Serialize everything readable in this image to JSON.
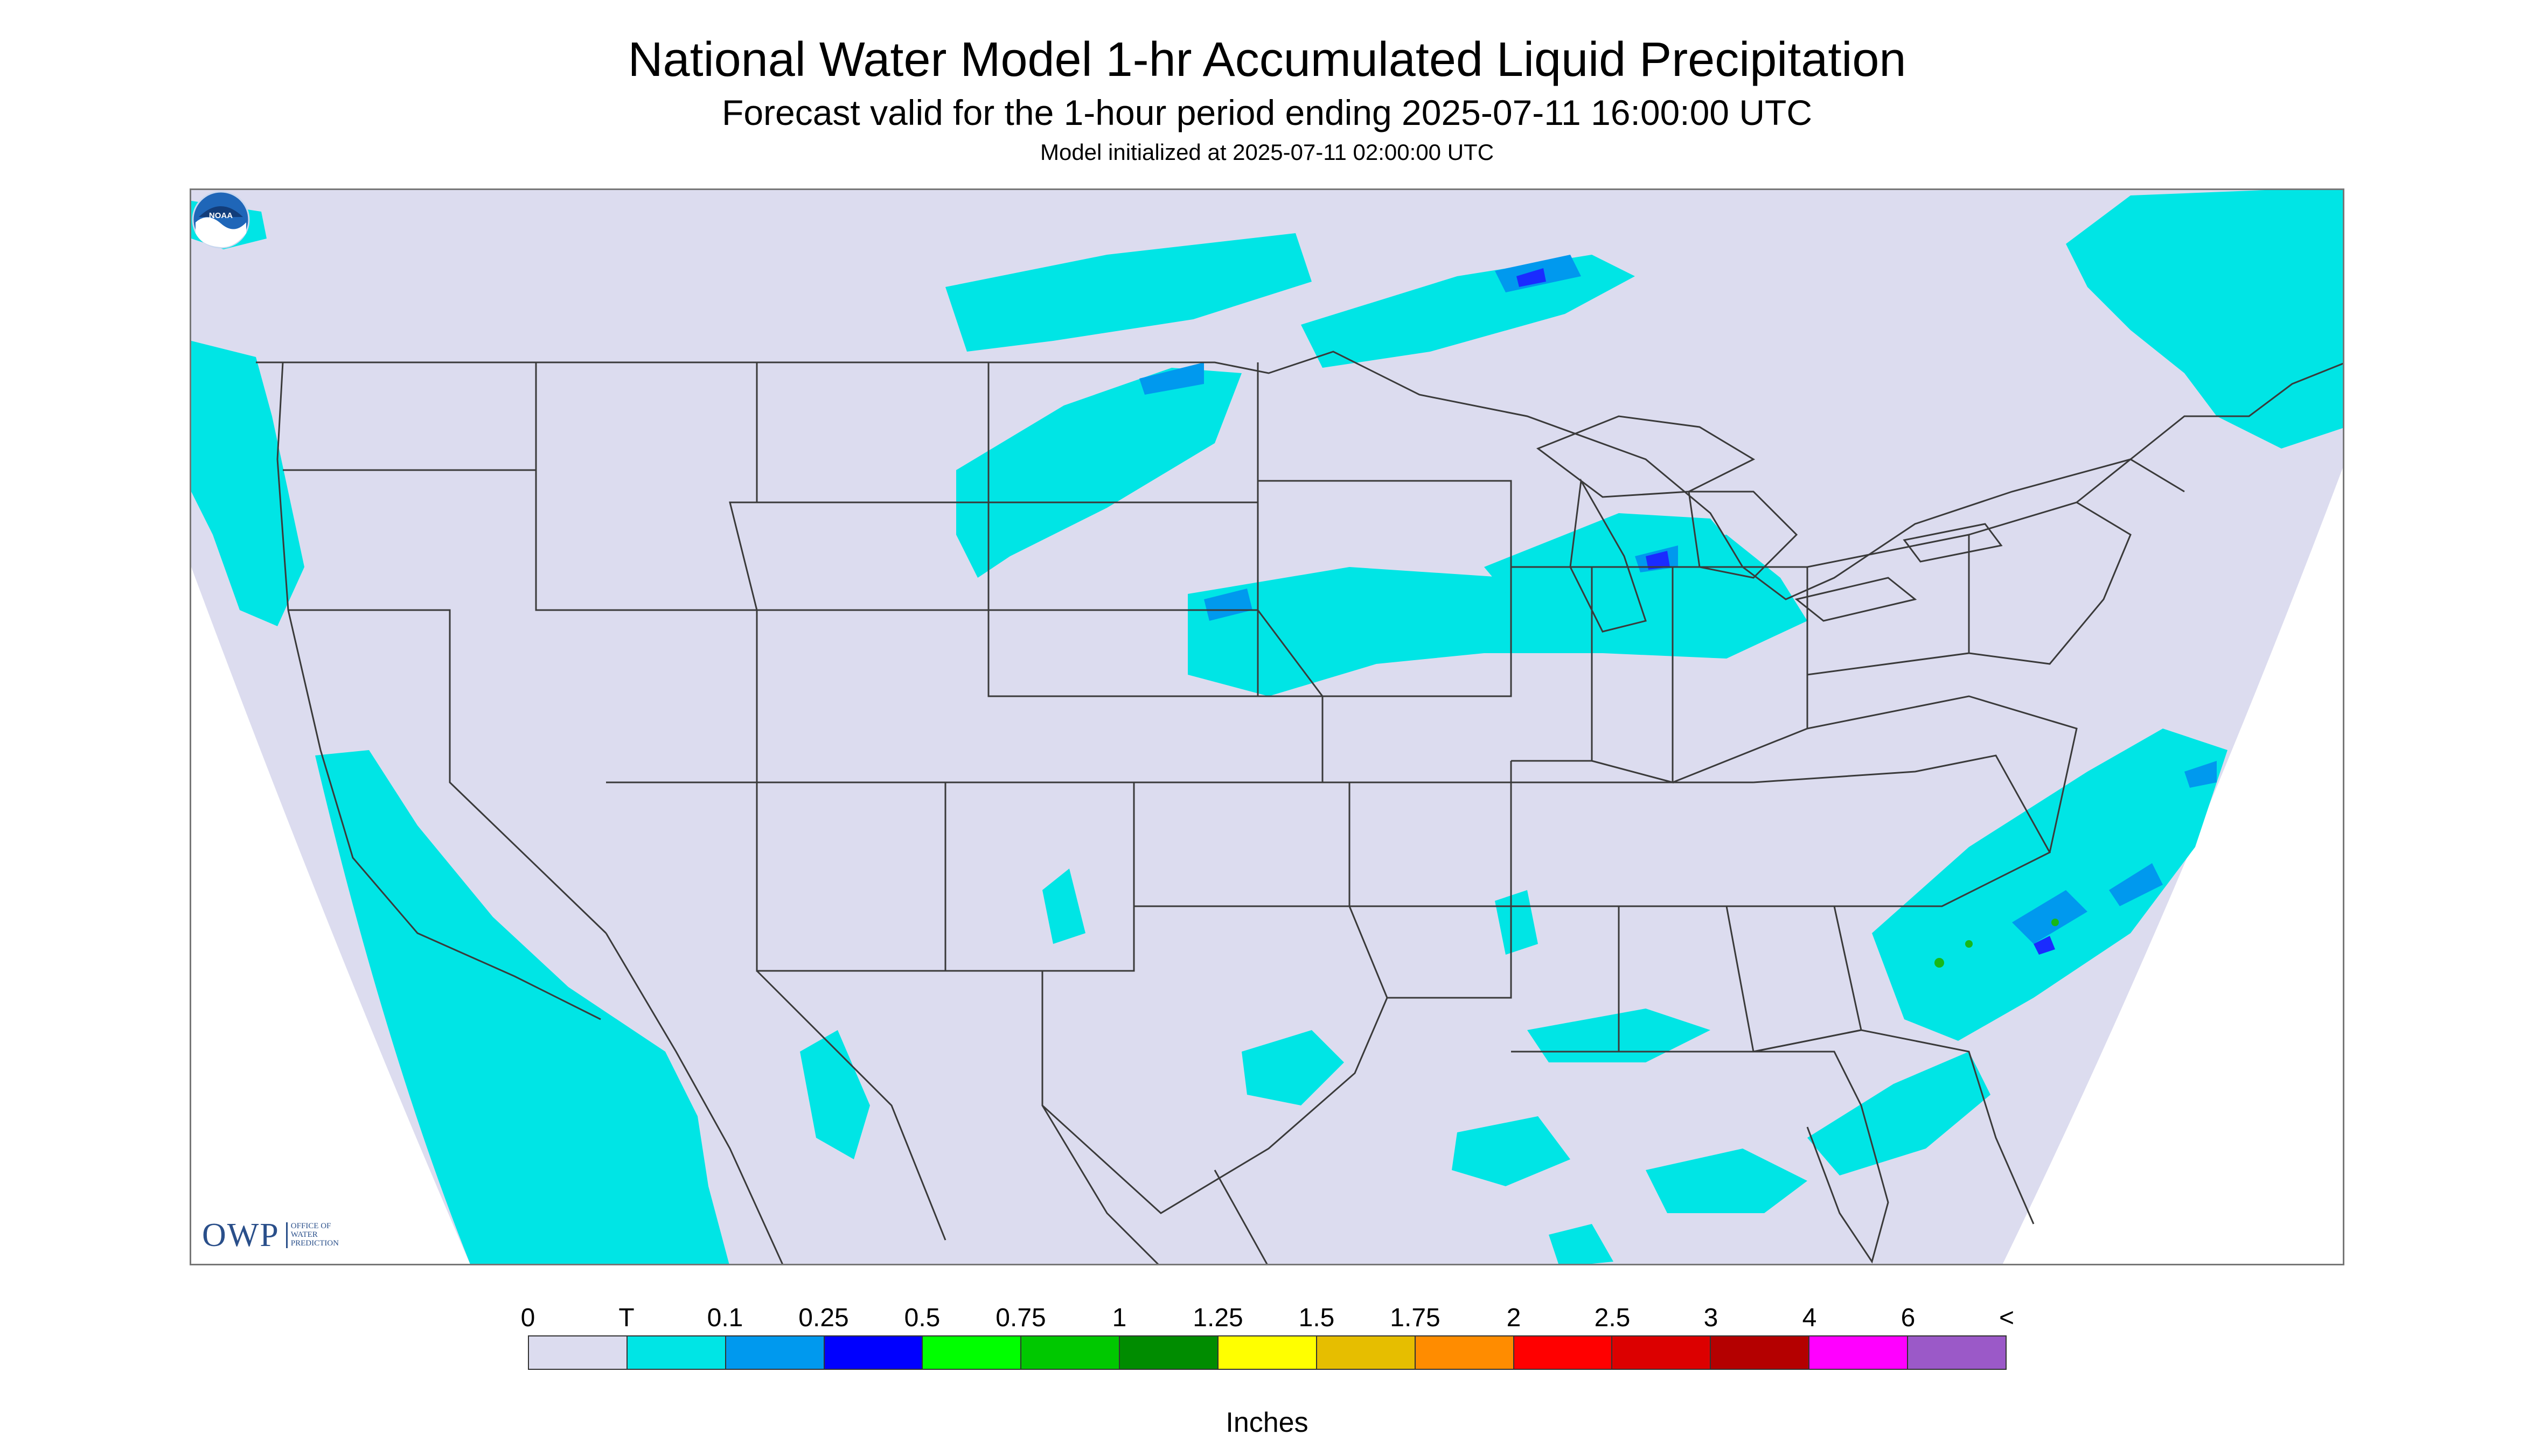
{
  "header": {
    "title": "National Water Model 1-hr Accumulated Liquid Precipitation",
    "subtitle": "Forecast valid for the 1-hour period ending 2025-07-11 16:00:00 UTC",
    "init": "Model initialized at 2025-07-11 02:00:00 UTC"
  },
  "map": {
    "background_color": "#dcdcef",
    "outside_color": "#ffffff",
    "border_color": "#3a3a3a",
    "light_precip_color": "#00e5e5",
    "moderate_precip_color": "#0099ee",
    "heavy_precip_color": "#1a2bff",
    "green_color": "#18b818"
  },
  "logos": {
    "owp_mark": "OWP",
    "owp_lines": [
      "OFFICE OF",
      "WATER",
      "PREDICTION"
    ],
    "noaa_text": "NOAA"
  },
  "legend": {
    "labels": [
      "0",
      "T",
      "0.1",
      "0.25",
      "0.5",
      "0.75",
      "1",
      "1.25",
      "1.5",
      "1.75",
      "2",
      "2.5",
      "3",
      "4",
      "6",
      "<"
    ],
    "colors": [
      "#dcdcef",
      "#00e5e5",
      "#0099ee",
      "#0000ff",
      "#00ff00",
      "#00c800",
      "#008c00",
      "#ffff00",
      "#e6be00",
      "#ff8c00",
      "#ff0000",
      "#dc0000",
      "#b40000",
      "#ff00ff",
      "#9b59c8"
    ],
    "units": "Inches"
  }
}
